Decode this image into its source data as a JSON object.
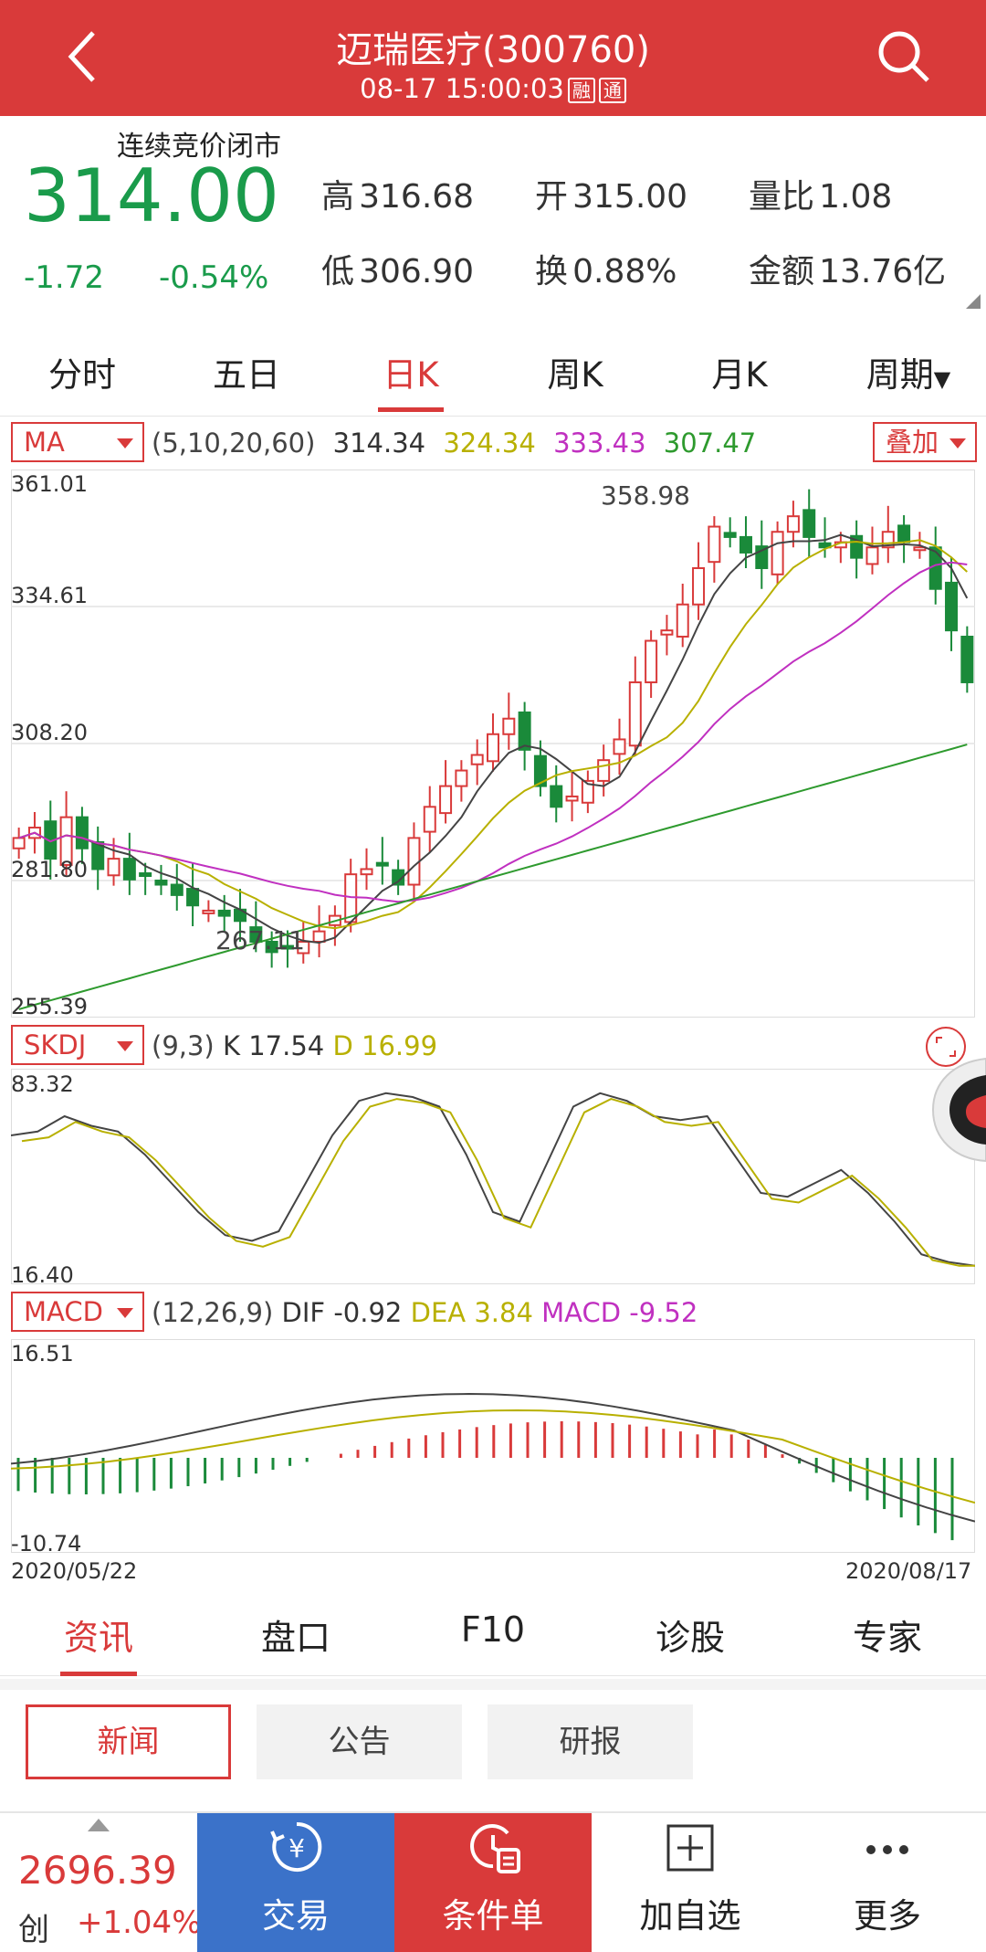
{
  "header": {
    "title": "迈瑞医疗(300760)",
    "time": "08-17 15:00:03",
    "tag1": "融",
    "tag2": "通"
  },
  "quote": {
    "status": "连续竞价闭市",
    "price": "314.00",
    "change": "-1.72",
    "change_pct": "-0.54%",
    "high_label": "高",
    "high": "316.68",
    "open_label": "开",
    "open": "315.00",
    "vol_ratio_label": "量比",
    "vol_ratio": "1.08",
    "low_label": "低",
    "low": "306.90",
    "turnover_label": "换",
    "turnover": "0.88%",
    "amount_label": "金额",
    "amount": "13.76亿"
  },
  "period_tabs": [
    "分时",
    "五日",
    "日K",
    "周K",
    "月K",
    "周期"
  ],
  "active_period": "日K",
  "ma": {
    "selector": "MA",
    "params": "(5,10,20,60)",
    "ma5": "314.34",
    "ma10": "324.34",
    "ma20": "333.43",
    "ma60": "307.47",
    "overlay": "叠加",
    "axis": [
      "361.01",
      "334.61",
      "308.20",
      "281.80",
      "255.39"
    ],
    "high_mark": "358.98",
    "low_mark": "267.11"
  },
  "kdj": {
    "selector": "SKDJ",
    "params": "(9,3)",
    "k_label": "K",
    "k": "17.54",
    "d_label": "D",
    "d": "16.99",
    "axis": [
      "83.32",
      "16.40"
    ]
  },
  "macd": {
    "selector": "MACD",
    "params": "(12,26,9)",
    "dif_label": "DIF",
    "dif": "-0.92",
    "dea_label": "DEA",
    "dea": "3.84",
    "macd_label": "MACD",
    "macd": "-9.52",
    "axis": [
      "16.51",
      "-10.74"
    ],
    "date_start": "2020/05/22",
    "date_end": "2020/08/17"
  },
  "bottom_tabs": [
    "资讯",
    "盘口",
    "F10",
    "诊股",
    "专家"
  ],
  "active_bottom": "资讯",
  "sub_tabs": [
    "新闻",
    "公告",
    "研报"
  ],
  "index": {
    "value": "2696.39",
    "name": "创",
    "change": "+1.04%"
  },
  "nav": [
    "交易",
    "条件单",
    "加自选",
    "更多"
  ],
  "colors": {
    "brand": "#d93a3a",
    "up": "#d93a3a",
    "down": "#1a9b4b",
    "trade_blue": "#3b72c9"
  }
}
